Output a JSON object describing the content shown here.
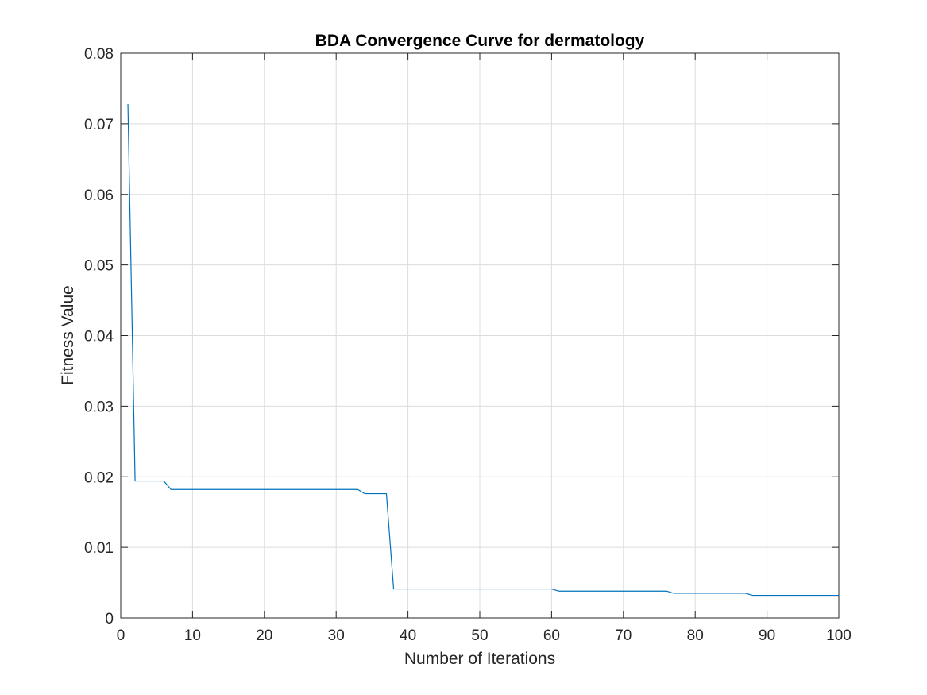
{
  "chart_data": {
    "type": "line",
    "title": "BDA Convergence Curve for dermatology",
    "xlabel": "Number of Iterations",
    "ylabel": "Fitness Value",
    "xlim": [
      0,
      100
    ],
    "ylim": [
      0,
      0.08
    ],
    "xticks": [
      0,
      10,
      20,
      30,
      40,
      50,
      60,
      70,
      80,
      90,
      100
    ],
    "yticks": [
      0,
      0.01,
      0.02,
      0.03,
      0.04,
      0.05,
      0.06,
      0.07,
      0.08
    ],
    "xtick_labels": [
      "0",
      "10",
      "20",
      "30",
      "40",
      "50",
      "60",
      "70",
      "80",
      "90",
      "100"
    ],
    "ytick_labels": [
      "0",
      "0.01",
      "0.02",
      "0.03",
      "0.04",
      "0.05",
      "0.06",
      "0.07",
      "0.08"
    ],
    "grid": true,
    "box": true,
    "series": [
      {
        "color": "#0072BD",
        "x": [
          1,
          2,
          6,
          7,
          33,
          34,
          37,
          38,
          60,
          61,
          76,
          77,
          87,
          88,
          100
        ],
        "y": [
          0.0728,
          0.0194,
          0.0194,
          0.0182,
          0.0182,
          0.0176,
          0.0176,
          0.0041,
          0.0041,
          0.0038,
          0.0038,
          0.0035,
          0.0035,
          0.0032,
          0.0032
        ]
      }
    ]
  }
}
